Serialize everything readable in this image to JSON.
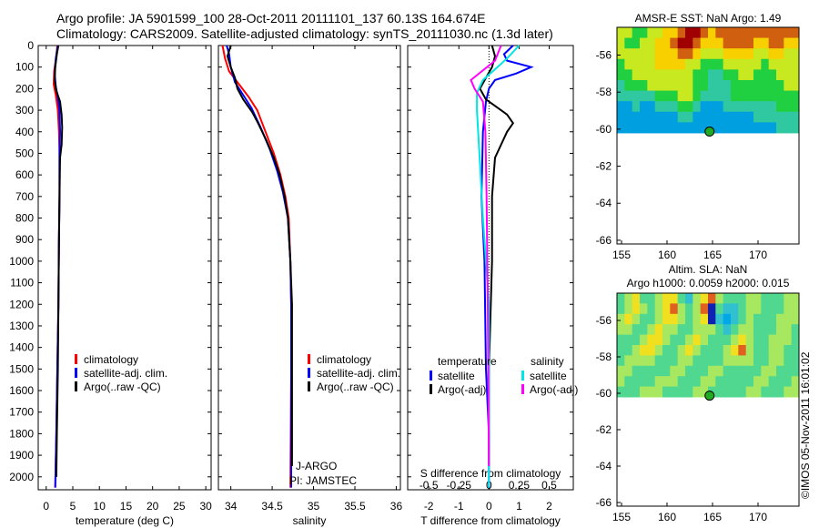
{
  "header": {
    "line1": "Argo profile: JA 5901599_100 28-Oct-2011 20111101_137 60.13S 164.674E",
    "line2": "Climatology: CARS2009. Satellite-adjusted climatology: synTS_20111030.nc (1.3d later)"
  },
  "watermark": "©IMOS 05-Nov-2011 16:01:02",
  "colors": {
    "climatology": "#ff0000",
    "satellite": "#0000ff",
    "argo": "#000000",
    "sat_diff_salinity": "#00e5e5",
    "argo_diff_salinity": "#ff00ff",
    "dot": "#22aa22"
  },
  "chart_data": [
    {
      "type": "line",
      "title": "",
      "xlabel": "temperature (deg C)",
      "ylabel": "",
      "xlim": [
        -1.5,
        31
      ],
      "ylim": [
        2060,
        0
      ],
      "xticks": [
        "0",
        "5",
        "10",
        "15",
        "20",
        "25",
        "30"
      ],
      "yticks": [
        "0",
        "100",
        "200",
        "300",
        "400",
        "500",
        "600",
        "700",
        "800",
        "900",
        "1000",
        "1100",
        "1200",
        "1300",
        "1400",
        "1500",
        "1600",
        "1700",
        "1800",
        "1900",
        "2000"
      ],
      "legend": [
        "climatology",
        "satellite-adj. clim.",
        "Argo(..raw -QC)"
      ],
      "series": [
        {
          "name": "climatology",
          "x": [
            2.1,
            1.9,
            1.5,
            1.4,
            1.8,
            2.2,
            2.4,
            2.5,
            2.5,
            2.4,
            2.3,
            2.1,
            1.9,
            1.7
          ],
          "y": [
            0,
            50,
            120,
            180,
            230,
            300,
            400,
            500,
            700,
            900,
            1200,
            1500,
            1800,
            2050
          ]
        },
        {
          "name": "satellite-adj. clim.",
          "x": [
            2.2,
            1.8,
            1.6,
            1.8,
            2.2,
            2.5,
            2.6,
            2.5,
            2.5,
            2.4,
            2.3,
            2.1,
            1.9,
            1.7
          ],
          "y": [
            0,
            60,
            130,
            190,
            240,
            300,
            400,
            500,
            700,
            900,
            1200,
            1500,
            1800,
            2050
          ]
        },
        {
          "name": "Argo(..raw -QC)",
          "x": [
            2.3,
            2.0,
            1.7,
            1.6,
            1.9,
            2.6,
            2.9,
            3.0,
            2.9,
            2.6,
            2.5,
            2.4,
            2.3,
            2.2,
            2.0,
            1.9
          ],
          "y": [
            0,
            40,
            100,
            160,
            210,
            260,
            320,
            380,
            460,
            520,
            700,
            900,
            1200,
            1500,
            1800,
            2000
          ]
        }
      ]
    },
    {
      "type": "line",
      "title": "",
      "xlabel": "salinity",
      "ylabel": "",
      "xlim": [
        33.85,
        36.05
      ],
      "ylim": [
        2060,
        0
      ],
      "xticks": [
        "34",
        "34.5",
        "35",
        "35.5",
        "36"
      ],
      "legend": [
        "climatology",
        "satellite-adj. clim.",
        "Argo(..raw -QC)"
      ],
      "annotations": [
        "J-ARGO",
        "PI: JAMSTEC"
      ],
      "series": [
        {
          "name": "climatology",
          "x": [
            33.9,
            33.93,
            33.98,
            34.1,
            34.22,
            34.32,
            34.42,
            34.52,
            34.6,
            34.66,
            34.7,
            34.72,
            34.73,
            34.73,
            34.72
          ],
          "y": [
            0,
            60,
            120,
            180,
            240,
            300,
            400,
            500,
            600,
            700,
            800,
            1000,
            1200,
            1500,
            2050
          ]
        },
        {
          "name": "satellite-adj. clim.",
          "x": [
            33.95,
            33.98,
            34.0,
            34.05,
            34.15,
            34.25,
            34.36,
            34.47,
            34.56,
            34.63,
            34.69,
            34.72,
            34.73,
            34.73,
            34.73
          ],
          "y": [
            0,
            40,
            100,
            170,
            230,
            290,
            380,
            480,
            580,
            680,
            800,
            1000,
            1200,
            1500,
            2050
          ]
        },
        {
          "name": "Argo(..raw -QC)",
          "x": [
            34.0,
            33.96,
            34.0,
            34.05,
            34.08,
            34.15,
            34.26,
            34.33,
            34.43,
            34.52,
            34.59,
            34.65,
            34.69,
            34.72,
            34.74,
            34.74,
            34.74
          ],
          "y": [
            0,
            50,
            100,
            150,
            200,
            250,
            310,
            360,
            440,
            520,
            600,
            700,
            800,
            1000,
            1200,
            1500,
            1950
          ]
        }
      ]
    },
    {
      "type": "line",
      "title": "",
      "xlabel": "T difference from climatology",
      "xlabel2": "S difference from climatology",
      "ylabel": "",
      "xlim": [
        -2.7,
        2.8
      ],
      "xlim_salinity": [
        -0.675,
        0.7
      ],
      "ylim": [
        2060,
        0
      ],
      "xticks": [
        "-2",
        "-1",
        "0",
        "1",
        "2"
      ],
      "xticks_salinity": [
        "-0.5",
        "-0.25",
        "0",
        "0.25",
        "0.5"
      ],
      "legend_headers": [
        "temperature",
        "salinity"
      ],
      "legend": [
        "satellite",
        "Argo(-adj)",
        "satellite",
        "Argo(-adj)"
      ],
      "series": [
        {
          "name": "temperature satellite",
          "x": [
            0.8,
            0.5,
            0.6,
            1.4,
            0.9,
            0.2,
            0.0,
            -0.1,
            -0.2,
            -0.25,
            -0.15,
            -0.1,
            0.0,
            0.0
          ],
          "y": [
            0,
            40,
            70,
            100,
            130,
            160,
            200,
            260,
            400,
            700,
            1000,
            1500,
            1800,
            2050
          ]
        },
        {
          "name": "temperature Argo(-adj)",
          "x": [
            0.1,
            0.2,
            0.1,
            -0.1,
            -0.3,
            -0.1,
            0.3,
            0.6,
            0.8,
            0.6,
            0.4,
            0.2,
            0.1,
            0.1,
            0.0,
            0.0
          ],
          "y": [
            0,
            50,
            100,
            150,
            200,
            250,
            290,
            320,
            360,
            400,
            460,
            520,
            700,
            1000,
            1500,
            1950
          ]
        },
        {
          "name": "salinity satellite",
          "x": [
            0.25,
            0.15,
            0.05,
            -0.05,
            -0.1,
            -0.1,
            -0.08,
            -0.05,
            0.0,
            0.0
          ],
          "y": [
            0,
            60,
            110,
            160,
            220,
            300,
            500,
            800,
            1200,
            2050
          ]
        },
        {
          "name": "salinity Argo(-adj)",
          "x": [
            0.1,
            0.05,
            -0.15,
            -0.12,
            -0.05,
            -0.03,
            -0.02,
            -0.01,
            0.0
          ],
          "y": [
            0,
            70,
            160,
            200,
            260,
            400,
            700,
            1200,
            1950
          ]
        }
      ]
    }
  ],
  "maps": [
    {
      "title": "AMSR-E SST: NaN Argo: 1.49",
      "subtitle": "",
      "xticks": [
        "155",
        "160",
        "165",
        "170"
      ],
      "yticks": [
        "-56",
        "-58",
        "-60",
        "-62",
        "-64",
        "-66"
      ],
      "xlim": [
        154.5,
        174.5
      ],
      "ylim": [
        -54.5,
        -66.2
      ],
      "data_lat_min": -60.2,
      "float_lon": 164.674,
      "float_lat": -60.13,
      "field": [
        [
          3,
          3,
          2,
          2,
          3,
          3,
          4,
          4,
          5,
          6,
          6,
          5,
          4,
          5,
          5,
          5,
          5,
          5,
          5,
          5,
          5,
          5,
          5,
          5
        ],
        [
          3,
          2,
          2,
          3,
          3,
          4,
          4,
          5,
          6,
          6,
          5,
          4,
          4,
          4,
          5,
          5,
          5,
          5,
          4,
          4,
          5,
          5,
          4,
          4
        ],
        [
          3,
          3,
          3,
          3,
          3,
          4,
          4,
          4,
          5,
          5,
          4,
          3,
          3,
          3,
          4,
          4,
          4,
          4,
          3,
          3,
          4,
          4,
          3,
          3
        ],
        [
          2,
          3,
          3,
          3,
          3,
          4,
          4,
          4,
          4,
          3,
          3,
          2,
          2,
          2,
          3,
          3,
          3,
          3,
          3,
          2,
          3,
          3,
          3,
          3
        ],
        [
          2,
          2,
          3,
          3,
          3,
          3,
          3,
          3,
          3,
          3,
          2,
          2,
          1,
          1,
          2,
          2,
          3,
          3,
          2,
          2,
          2,
          3,
          3,
          3
        ],
        [
          1,
          2,
          2,
          2,
          3,
          3,
          3,
          3,
          3,
          3,
          2,
          2,
          1,
          1,
          1,
          2,
          2,
          2,
          2,
          2,
          2,
          2,
          3,
          3
        ],
        [
          1,
          1,
          1,
          1,
          1,
          2,
          2,
          2,
          3,
          3,
          2,
          1,
          1,
          1,
          1,
          2,
          2,
          2,
          2,
          2,
          2,
          2,
          2,
          2
        ],
        [
          0,
          0,
          1,
          0,
          0,
          1,
          1,
          1,
          2,
          2,
          1,
          0,
          0,
          0,
          1,
          1,
          1,
          1,
          1,
          1,
          1,
          2,
          2,
          2
        ],
        [
          0,
          0,
          0,
          0,
          0,
          0,
          0,
          0,
          1,
          1,
          0,
          0,
          0,
          0,
          0,
          0,
          0,
          0,
          1,
          1,
          1,
          1,
          1,
          1
        ],
        [
          0,
          0,
          0,
          0,
          0,
          0,
          0,
          0,
          0,
          0,
          0,
          0,
          0,
          0,
          0,
          0,
          0,
          0,
          0,
          0,
          0,
          1,
          1,
          1
        ]
      ]
    },
    {
      "title": "Altim. SLA: NaN",
      "subtitle": "Argo h1000: 0.0059 h2000: 0.015",
      "xticks": [
        "155",
        "160",
        "165",
        "170"
      ],
      "yticks": [
        "-56",
        "-58",
        "-60",
        "-62",
        "-64",
        "-66"
      ],
      "xlim": [
        154.5,
        174.5
      ],
      "ylim": [
        -54.5,
        -66.2
      ],
      "data_lat_min": -60.2,
      "float_lon": 164.674,
      "float_lat": -60.13,
      "field": [
        [
          2,
          3,
          4,
          2,
          2,
          3,
          4,
          4,
          2,
          1,
          3,
          4,
          5,
          3,
          2,
          2,
          2,
          3,
          3,
          2,
          2,
          2,
          3,
          3
        ],
        [
          2,
          3,
          4,
          3,
          2,
          3,
          4,
          5,
          3,
          2,
          3,
          5,
          6,
          2,
          1,
          1,
          2,
          3,
          3,
          2,
          2,
          2,
          3,
          3
        ],
        [
          3,
          4,
          3,
          2,
          2,
          3,
          4,
          4,
          3,
          2,
          3,
          4,
          6,
          1,
          0,
          1,
          2,
          3,
          2,
          2,
          2,
          3,
          3,
          3
        ],
        [
          3,
          3,
          2,
          2,
          3,
          4,
          3,
          3,
          2,
          2,
          3,
          3,
          3,
          2,
          1,
          2,
          3,
          3,
          2,
          2,
          2,
          3,
          3,
          2
        ],
        [
          2,
          2,
          2,
          3,
          4,
          4,
          3,
          2,
          2,
          3,
          4,
          3,
          2,
          2,
          2,
          3,
          4,
          3,
          2,
          2,
          3,
          3,
          3,
          2
        ],
        [
          2,
          2,
          3,
          4,
          4,
          3,
          2,
          2,
          3,
          4,
          3,
          2,
          2,
          2,
          3,
          4,
          5,
          3,
          2,
          2,
          3,
          3,
          2,
          2
        ],
        [
          2,
          3,
          3,
          3,
          3,
          2,
          2,
          2,
          3,
          3,
          2,
          2,
          2,
          2,
          3,
          3,
          3,
          3,
          2,
          2,
          3,
          3,
          2,
          2
        ],
        [
          3,
          3,
          2,
          2,
          2,
          2,
          2,
          3,
          3,
          2,
          2,
          2,
          3,
          3,
          2,
          2,
          2,
          2,
          2,
          3,
          3,
          2,
          2,
          2
        ],
        [
          3,
          2,
          2,
          2,
          2,
          3,
          3,
          3,
          2,
          2,
          2,
          3,
          3,
          2,
          2,
          2,
          2,
          2,
          3,
          3,
          2,
          2,
          2,
          3
        ],
        [
          2,
          2,
          2,
          3,
          3,
          3,
          2,
          2,
          2,
          2,
          3,
          3,
          2,
          2,
          2,
          2,
          2,
          3,
          3,
          2,
          2,
          2,
          3,
          3
        ]
      ]
    }
  ]
}
